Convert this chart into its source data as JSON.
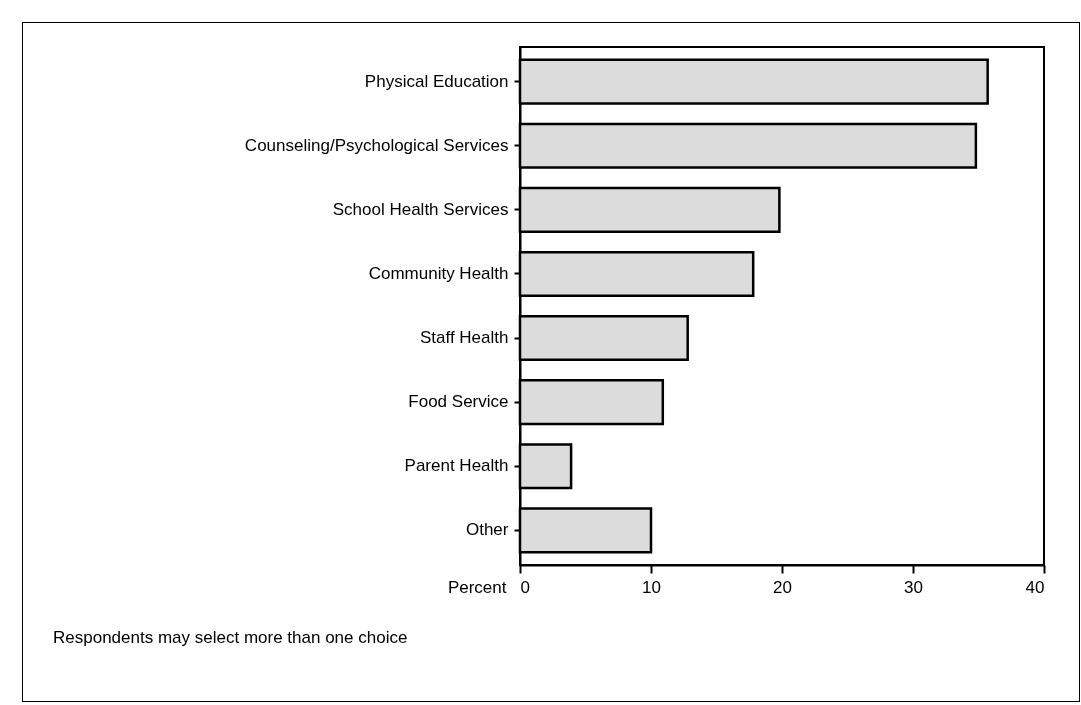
{
  "chart_data": {
    "type": "bar",
    "orientation": "horizontal",
    "xlabel": "Percent",
    "categories": [
      "Physical Education",
      "Counseling/Psychological Services",
      "School Health Services",
      "Community Health",
      "Staff Health",
      "Food Service",
      "Parent Health",
      "Other"
    ],
    "values": [
      35.7,
      34.8,
      19.8,
      17.8,
      12.8,
      10.9,
      3.9,
      10.0
    ],
    "color": "#dcdcdc",
    "xlim": [
      0,
      40
    ],
    "xticks": [
      0,
      10,
      20,
      30,
      40
    ],
    "grid": false,
    "annotations": [
      "Respondents may select more than one choice"
    ]
  }
}
